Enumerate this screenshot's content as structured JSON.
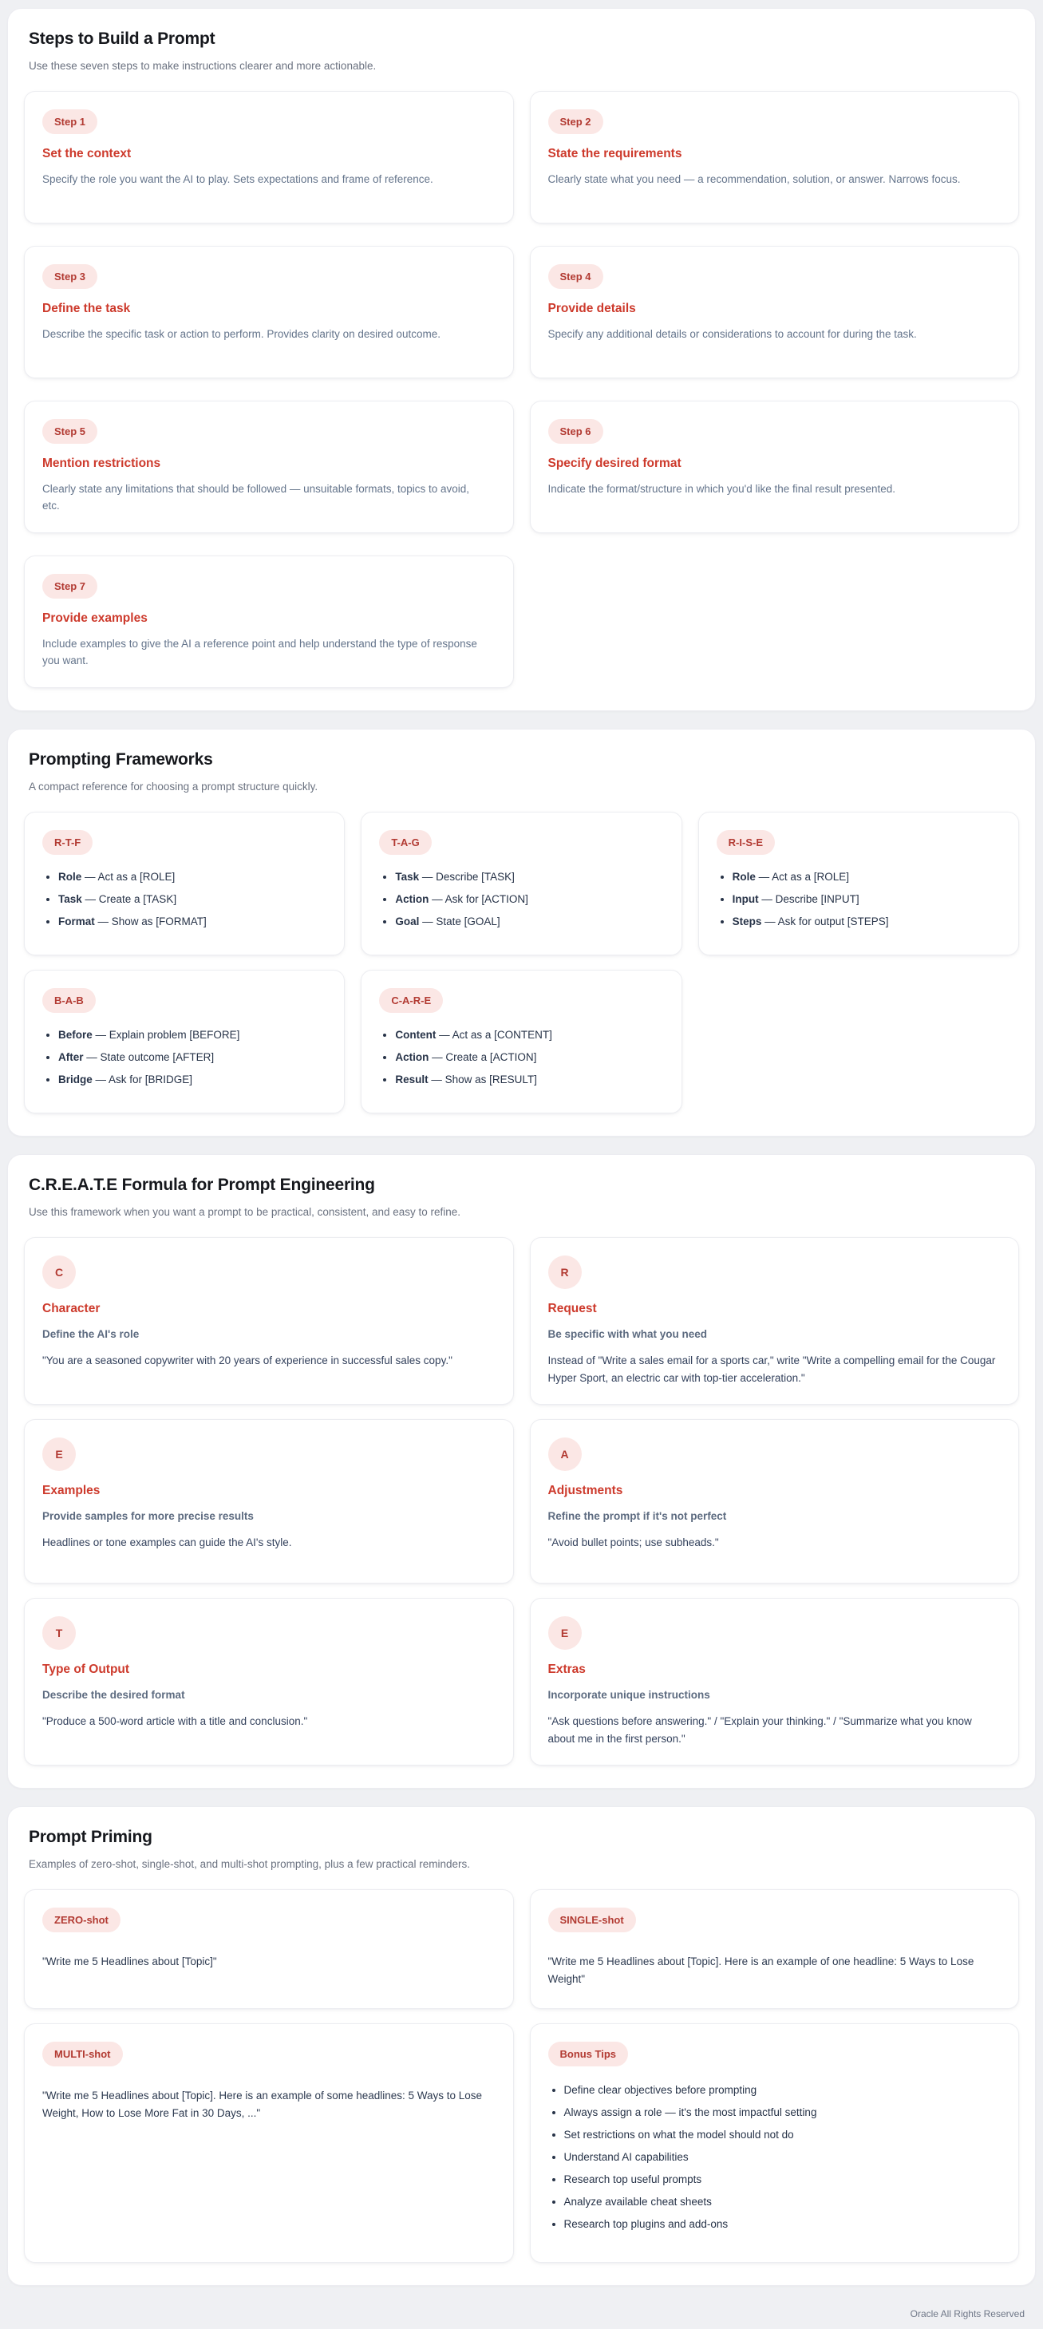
{
  "colors": {
    "accent_red": "#cd3a2c",
    "badge_background": "#fbe7e5",
    "badge_text": "#b23a32",
    "body_gray": "#64748b",
    "list_navy": "#273348",
    "page_background": "#eff0f3"
  },
  "sections": {
    "steps": {
      "title": "Steps to Build a Prompt",
      "subtitle": "Use these seven steps to make instructions clearer and more actionable.",
      "cards": [
        {
          "badge": "Step 1",
          "title": "Set the context",
          "body": "Specify the role you want the AI to play. Sets expectations and frame of reference."
        },
        {
          "badge": "Step 2",
          "title": "State the requirements",
          "body": "Clearly state what you need — a recommendation, solution, or answer. Narrows focus."
        },
        {
          "badge": "Step 3",
          "title": "Define the task",
          "body": "Describe the specific task or action to perform. Provides clarity on desired outcome."
        },
        {
          "badge": "Step 4",
          "title": "Provide details",
          "body": "Specify any additional details or considerations to account for during the task."
        },
        {
          "badge": "Step 5",
          "title": "Mention restrictions",
          "body": "Clearly state any limitations that should be followed — unsuitable formats, topics to avoid, etc."
        },
        {
          "badge": "Step 6",
          "title": "Specify desired format",
          "body": "Indicate the format/structure in which you'd like the final result presented."
        },
        {
          "badge": "Step 7",
          "title": "Provide examples",
          "body": "Include examples to give the AI a reference point and help understand the type of response you want."
        }
      ]
    },
    "frameworks": {
      "title": "Prompting Frameworks",
      "subtitle": "A compact reference for choosing a prompt structure quickly.",
      "cards": [
        {
          "badge": "R-T-F",
          "items": [
            {
              "term": "Role",
              "desc": " — Act as a [ROLE]"
            },
            {
              "term": "Task",
              "desc": " — Create a [TASK]"
            },
            {
              "term": "Format",
              "desc": " — Show as [FORMAT]"
            }
          ]
        },
        {
          "badge": "T-A-G",
          "items": [
            {
              "term": "Task",
              "desc": " — Describe [TASK]"
            },
            {
              "term": "Action",
              "desc": " — Ask for [ACTION]"
            },
            {
              "term": "Goal",
              "desc": " — State [GOAL]"
            }
          ]
        },
        {
          "badge": "R-I-S-E",
          "items": [
            {
              "term": "Role",
              "desc": " — Act as a [ROLE]"
            },
            {
              "term": "Input",
              "desc": " — Describe [INPUT]"
            },
            {
              "term": "Steps",
              "desc": " — Ask for output [STEPS]"
            }
          ]
        },
        {
          "badge": "B-A-B",
          "items": [
            {
              "term": "Before",
              "desc": " — Explain problem [BEFORE]"
            },
            {
              "term": "After",
              "desc": " — State outcome [AFTER]"
            },
            {
              "term": "Bridge",
              "desc": " — Ask for [BRIDGE]"
            }
          ]
        },
        {
          "badge": "C-A-R-E",
          "items": [
            {
              "term": "Content",
              "desc": " — Act as a [CONTENT]"
            },
            {
              "term": "Action",
              "desc": " — Create a [ACTION]"
            },
            {
              "term": "Result",
              "desc": " — Show as [RESULT]"
            }
          ]
        }
      ]
    },
    "create": {
      "title": "C.R.E.A.T.E Formula for Prompt Engineering",
      "subtitle": "Use this framework when you want a prompt to be practical, consistent, and easy to refine.",
      "cards": [
        {
          "badge": "C",
          "title": "Character",
          "subtitle": "Define the AI's role",
          "body": "\"You are a seasoned copywriter with 20 years of experience in successful sales copy.\""
        },
        {
          "badge": "R",
          "title": "Request",
          "subtitle": "Be specific with what you need",
          "body": "Instead of \"Write a sales email for a sports car,\" write \"Write a compelling email for the Cougar Hyper Sport, an electric car with top-tier acceleration.\""
        },
        {
          "badge": "E",
          "title": "Examples",
          "subtitle": "Provide samples for more precise results",
          "body": "Headlines or tone examples can guide the AI's style."
        },
        {
          "badge": "A",
          "title": "Adjustments",
          "subtitle": "Refine the prompt if it's not perfect",
          "body": "\"Avoid bullet points; use subheads.\""
        },
        {
          "badge": "T",
          "title": "Type of Output",
          "subtitle": "Describe the desired format",
          "body": "\"Produce a 500-word article with a title and conclusion.\""
        },
        {
          "badge": "E",
          "title": "Extras",
          "subtitle": "Incorporate unique instructions",
          "body": "\"Ask questions before answering.\" / \"Explain your thinking.\" / \"Summarize what you know about me in the first person.\""
        }
      ]
    },
    "priming": {
      "title": "Prompt Priming",
      "subtitle": "Examples of zero-shot, single-shot, and multi-shot prompting, plus a few practical reminders.",
      "cards": [
        {
          "badge": "ZERO-shot",
          "body": "\"Write me 5 Headlines about [Topic]\""
        },
        {
          "badge": "SINGLE-shot",
          "body": "\"Write me 5 Headlines about [Topic]. Here is an example of one headline: 5 Ways to Lose Weight\""
        },
        {
          "badge": "MULTI-shot",
          "body": "\"Write me 5 Headlines about [Topic]. Here is an example of some headlines: 5 Ways to Lose Weight, How to Lose More Fat in 30 Days, ...\""
        }
      ],
      "bonus": {
        "badge": "Bonus Tips",
        "items": [
          "Define clear objectives before prompting",
          "Always assign a role — it's the most impactful setting",
          "Set restrictions on what the model should not do",
          "Understand AI capabilities",
          "Research top useful prompts",
          "Analyze available cheat sheets",
          "Research top plugins and add-ons"
        ]
      }
    }
  },
  "footer": "Oracle All Rights Reserved"
}
